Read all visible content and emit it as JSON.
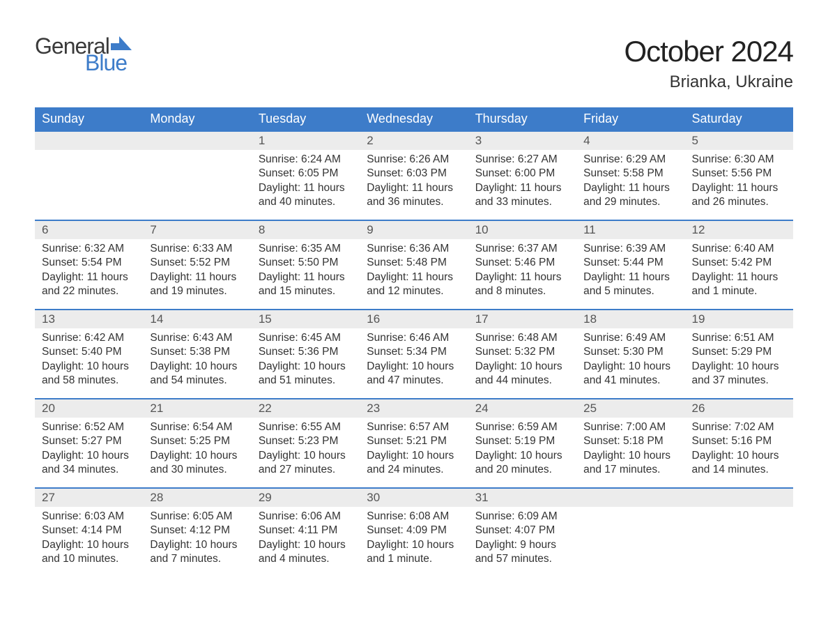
{
  "brand": {
    "general": "General",
    "blue": "Blue"
  },
  "title": {
    "month": "October 2024",
    "location": "Brianka, Ukraine"
  },
  "colors": {
    "header_bg": "#3d7cc9",
    "header_text": "#ffffff",
    "daynum_bg": "#ececec",
    "border": "#3d7cc9",
    "text": "#333333",
    "logo_blue": "#3d7cc9"
  },
  "fonts": {
    "title_size": 42,
    "location_size": 24,
    "header_size": 18,
    "body_size": 15.5
  },
  "weekdays": [
    "Sunday",
    "Monday",
    "Tuesday",
    "Wednesday",
    "Thursday",
    "Friday",
    "Saturday"
  ],
  "weeks": [
    [
      null,
      null,
      {
        "n": "1",
        "sunrise": "Sunrise: 6:24 AM",
        "sunset": "Sunset: 6:05 PM",
        "d1": "Daylight: 11 hours",
        "d2": "and 40 minutes."
      },
      {
        "n": "2",
        "sunrise": "Sunrise: 6:26 AM",
        "sunset": "Sunset: 6:03 PM",
        "d1": "Daylight: 11 hours",
        "d2": "and 36 minutes."
      },
      {
        "n": "3",
        "sunrise": "Sunrise: 6:27 AM",
        "sunset": "Sunset: 6:00 PM",
        "d1": "Daylight: 11 hours",
        "d2": "and 33 minutes."
      },
      {
        "n": "4",
        "sunrise": "Sunrise: 6:29 AM",
        "sunset": "Sunset: 5:58 PM",
        "d1": "Daylight: 11 hours",
        "d2": "and 29 minutes."
      },
      {
        "n": "5",
        "sunrise": "Sunrise: 6:30 AM",
        "sunset": "Sunset: 5:56 PM",
        "d1": "Daylight: 11 hours",
        "d2": "and 26 minutes."
      }
    ],
    [
      {
        "n": "6",
        "sunrise": "Sunrise: 6:32 AM",
        "sunset": "Sunset: 5:54 PM",
        "d1": "Daylight: 11 hours",
        "d2": "and 22 minutes."
      },
      {
        "n": "7",
        "sunrise": "Sunrise: 6:33 AM",
        "sunset": "Sunset: 5:52 PM",
        "d1": "Daylight: 11 hours",
        "d2": "and 19 minutes."
      },
      {
        "n": "8",
        "sunrise": "Sunrise: 6:35 AM",
        "sunset": "Sunset: 5:50 PM",
        "d1": "Daylight: 11 hours",
        "d2": "and 15 minutes."
      },
      {
        "n": "9",
        "sunrise": "Sunrise: 6:36 AM",
        "sunset": "Sunset: 5:48 PM",
        "d1": "Daylight: 11 hours",
        "d2": "and 12 minutes."
      },
      {
        "n": "10",
        "sunrise": "Sunrise: 6:37 AM",
        "sunset": "Sunset: 5:46 PM",
        "d1": "Daylight: 11 hours",
        "d2": "and 8 minutes."
      },
      {
        "n": "11",
        "sunrise": "Sunrise: 6:39 AM",
        "sunset": "Sunset: 5:44 PM",
        "d1": "Daylight: 11 hours",
        "d2": "and 5 minutes."
      },
      {
        "n": "12",
        "sunrise": "Sunrise: 6:40 AM",
        "sunset": "Sunset: 5:42 PM",
        "d1": "Daylight: 11 hours",
        "d2": "and 1 minute."
      }
    ],
    [
      {
        "n": "13",
        "sunrise": "Sunrise: 6:42 AM",
        "sunset": "Sunset: 5:40 PM",
        "d1": "Daylight: 10 hours",
        "d2": "and 58 minutes."
      },
      {
        "n": "14",
        "sunrise": "Sunrise: 6:43 AM",
        "sunset": "Sunset: 5:38 PM",
        "d1": "Daylight: 10 hours",
        "d2": "and 54 minutes."
      },
      {
        "n": "15",
        "sunrise": "Sunrise: 6:45 AM",
        "sunset": "Sunset: 5:36 PM",
        "d1": "Daylight: 10 hours",
        "d2": "and 51 minutes."
      },
      {
        "n": "16",
        "sunrise": "Sunrise: 6:46 AM",
        "sunset": "Sunset: 5:34 PM",
        "d1": "Daylight: 10 hours",
        "d2": "and 47 minutes."
      },
      {
        "n": "17",
        "sunrise": "Sunrise: 6:48 AM",
        "sunset": "Sunset: 5:32 PM",
        "d1": "Daylight: 10 hours",
        "d2": "and 44 minutes."
      },
      {
        "n": "18",
        "sunrise": "Sunrise: 6:49 AM",
        "sunset": "Sunset: 5:30 PM",
        "d1": "Daylight: 10 hours",
        "d2": "and 41 minutes."
      },
      {
        "n": "19",
        "sunrise": "Sunrise: 6:51 AM",
        "sunset": "Sunset: 5:29 PM",
        "d1": "Daylight: 10 hours",
        "d2": "and 37 minutes."
      }
    ],
    [
      {
        "n": "20",
        "sunrise": "Sunrise: 6:52 AM",
        "sunset": "Sunset: 5:27 PM",
        "d1": "Daylight: 10 hours",
        "d2": "and 34 minutes."
      },
      {
        "n": "21",
        "sunrise": "Sunrise: 6:54 AM",
        "sunset": "Sunset: 5:25 PM",
        "d1": "Daylight: 10 hours",
        "d2": "and 30 minutes."
      },
      {
        "n": "22",
        "sunrise": "Sunrise: 6:55 AM",
        "sunset": "Sunset: 5:23 PM",
        "d1": "Daylight: 10 hours",
        "d2": "and 27 minutes."
      },
      {
        "n": "23",
        "sunrise": "Sunrise: 6:57 AM",
        "sunset": "Sunset: 5:21 PM",
        "d1": "Daylight: 10 hours",
        "d2": "and 24 minutes."
      },
      {
        "n": "24",
        "sunrise": "Sunrise: 6:59 AM",
        "sunset": "Sunset: 5:19 PM",
        "d1": "Daylight: 10 hours",
        "d2": "and 20 minutes."
      },
      {
        "n": "25",
        "sunrise": "Sunrise: 7:00 AM",
        "sunset": "Sunset: 5:18 PM",
        "d1": "Daylight: 10 hours",
        "d2": "and 17 minutes."
      },
      {
        "n": "26",
        "sunrise": "Sunrise: 7:02 AM",
        "sunset": "Sunset: 5:16 PM",
        "d1": "Daylight: 10 hours",
        "d2": "and 14 minutes."
      }
    ],
    [
      {
        "n": "27",
        "sunrise": "Sunrise: 6:03 AM",
        "sunset": "Sunset: 4:14 PM",
        "d1": "Daylight: 10 hours",
        "d2": "and 10 minutes."
      },
      {
        "n": "28",
        "sunrise": "Sunrise: 6:05 AM",
        "sunset": "Sunset: 4:12 PM",
        "d1": "Daylight: 10 hours",
        "d2": "and 7 minutes."
      },
      {
        "n": "29",
        "sunrise": "Sunrise: 6:06 AM",
        "sunset": "Sunset: 4:11 PM",
        "d1": "Daylight: 10 hours",
        "d2": "and 4 minutes."
      },
      {
        "n": "30",
        "sunrise": "Sunrise: 6:08 AM",
        "sunset": "Sunset: 4:09 PM",
        "d1": "Daylight: 10 hours",
        "d2": "and 1 minute."
      },
      {
        "n": "31",
        "sunrise": "Sunrise: 6:09 AM",
        "sunset": "Sunset: 4:07 PM",
        "d1": "Daylight: 9 hours",
        "d2": "and 57 minutes."
      },
      null,
      null
    ]
  ]
}
